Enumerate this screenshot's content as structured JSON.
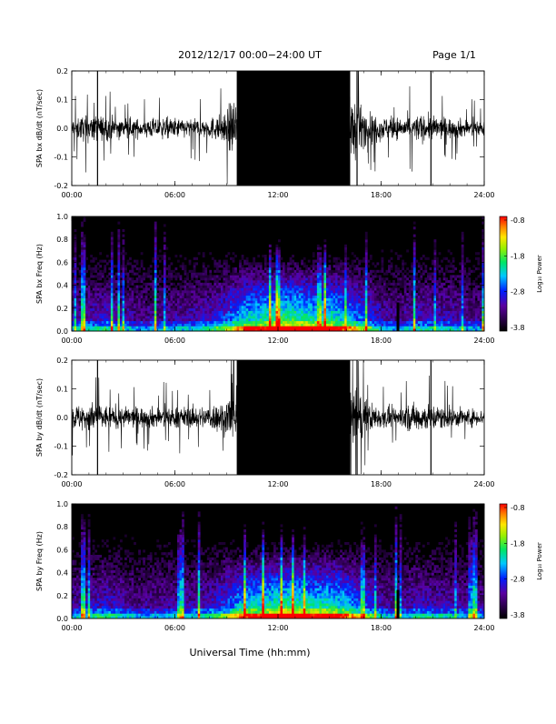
{
  "header": {
    "title": "2012/12/17   00:00−24:00 UT",
    "page": "Page 1/1"
  },
  "xaxis_label": "Universal Time (hh:mm)",
  "colorbar": {
    "label": "Log₁₀ Power",
    "tick_labels": [
      "-0.8",
      "-1.8",
      "-2.8",
      "-3.8"
    ],
    "range": [
      -3.8,
      -0.8
    ]
  },
  "chart_data": [
    {
      "type": "line",
      "ylabel": "SPA bx dB/dt (nT/sec)",
      "xlim": [
        0,
        24
      ],
      "ylim": [
        -0.2,
        0.2
      ],
      "x_tick_labels": [
        "00:00",
        "06:00",
        "12:00",
        "18:00",
        "24:00"
      ],
      "y_tick_labels": [
        "0.2",
        "0.1",
        "0.0",
        "-0.1",
        "-0.2"
      ],
      "series": [
        {
          "x": [
            0,
            1,
            2,
            3,
            4,
            5,
            6,
            7,
            8,
            9,
            9.3,
            9.5,
            10,
            11,
            12,
            13,
            14,
            15,
            16,
            16.5,
            17,
            18,
            19,
            20,
            21,
            22,
            23,
            24
          ],
          "envelope": [
            0.07,
            0.09,
            0.08,
            0.07,
            0.06,
            0.07,
            0.07,
            0.06,
            0.07,
            0.1,
            0.2,
            0.22,
            0.22,
            0.22,
            0.22,
            0.22,
            0.22,
            0.22,
            0.22,
            0.2,
            0.12,
            0.08,
            0.07,
            0.09,
            0.08,
            0.07,
            0.06,
            0.05
          ]
        }
      ]
    },
    {
      "type": "heatmap",
      "ylabel": "SPA bx Freq (Hz)",
      "xlim": [
        0,
        24
      ],
      "ylim": [
        0,
        1.0
      ],
      "x_tick_labels": [
        "00:00",
        "06:00",
        "12:00",
        "18:00",
        "24:00"
      ],
      "y_tick_labels": [
        "1.0",
        "0.8",
        "0.6",
        "0.4",
        "0.2",
        "0.0"
      ]
    },
    {
      "type": "line",
      "ylabel": "SPA by dB/dt (nT/sec)",
      "xlim": [
        0,
        24
      ],
      "ylim": [
        -0.2,
        0.2
      ],
      "x_tick_labels": [
        "00:00",
        "06:00",
        "12:00",
        "18:00",
        "24:00"
      ],
      "y_tick_labels": [
        "0.2",
        "0.1",
        "0.0",
        "-0.1",
        "-0.2"
      ],
      "series": [
        {
          "x": [
            0,
            1,
            2,
            3,
            4,
            5,
            6,
            7,
            8,
            9,
            9.3,
            9.5,
            10,
            11,
            12,
            13,
            14,
            15,
            16,
            16.5,
            17,
            18,
            19,
            20,
            21,
            22,
            23,
            24
          ],
          "envelope": [
            0.08,
            0.1,
            0.08,
            0.07,
            0.07,
            0.07,
            0.07,
            0.07,
            0.08,
            0.12,
            0.22,
            0.22,
            0.22,
            0.22,
            0.22,
            0.22,
            0.22,
            0.22,
            0.22,
            0.2,
            0.12,
            0.07,
            0.07,
            0.1,
            0.09,
            0.07,
            0.06,
            0.05
          ]
        }
      ]
    },
    {
      "type": "heatmap",
      "ylabel": "SPA by Freq (Hz)",
      "xlim": [
        0,
        24
      ],
      "ylim": [
        0,
        1.0
      ],
      "x_tick_labels": [
        "00:00",
        "06:00",
        "12:00",
        "18:00",
        "24:00"
      ],
      "y_tick_labels": [
        "1.0",
        "0.8",
        "0.6",
        "0.4",
        "0.2",
        "0.0"
      ]
    }
  ]
}
